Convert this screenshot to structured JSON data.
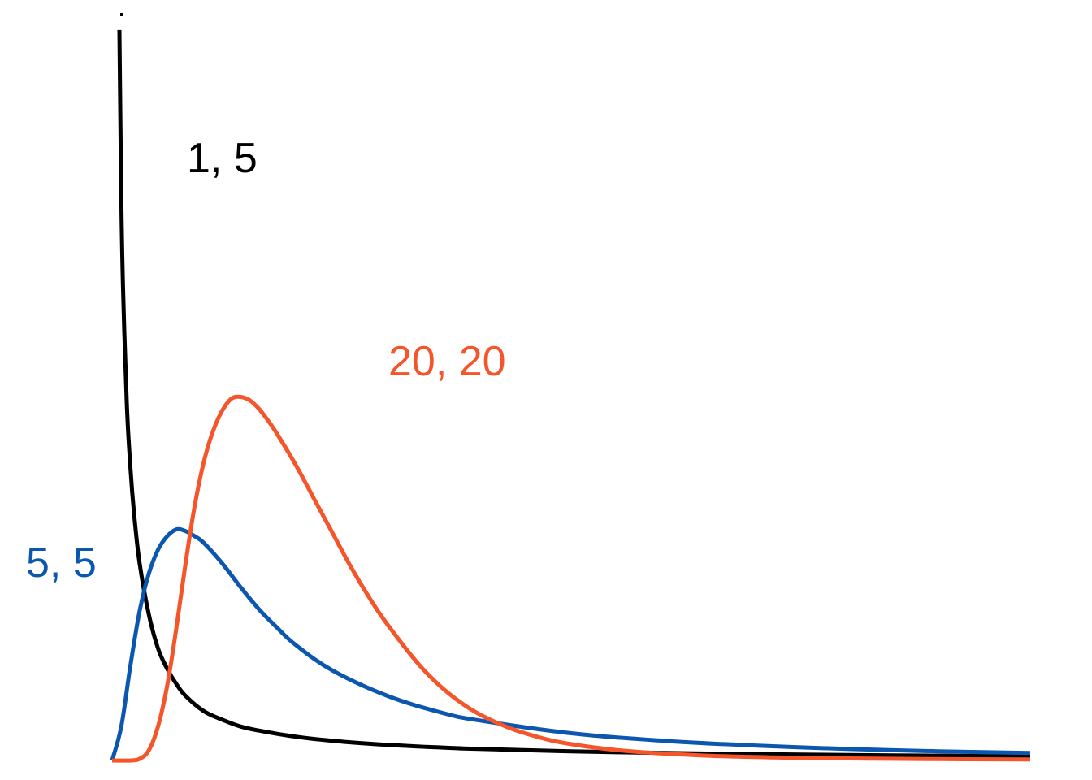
{
  "chart_data": {
    "type": "line",
    "title": "",
    "xlabel": "",
    "ylabel": "",
    "xlim": [
      0,
      5
    ],
    "ylim": [
      0,
      2.2
    ],
    "grid": false,
    "legend": "inline labels",
    "series": [
      {
        "name": "1, 5",
        "color": "#000000",
        "x": [
          0.04,
          0.05,
          0.06,
          0.08,
          0.1,
          0.12,
          0.15,
          0.2,
          0.25,
          0.3,
          0.35,
          0.4,
          0.5,
          0.6,
          0.7,
          0.8,
          1.0,
          1.2,
          1.5,
          1.8,
          2.0,
          2.5,
          3.0,
          3.5,
          4.0,
          4.5,
          5.0
        ],
        "values": [
          2.15,
          1.66,
          1.38,
          1.05,
          0.86,
          0.725,
          0.58,
          0.43,
          0.33,
          0.27,
          0.225,
          0.19,
          0.145,
          0.12,
          0.1,
          0.088,
          0.07,
          0.058,
          0.046,
          0.038,
          0.034,
          0.027,
          0.022,
          0.019,
          0.016,
          0.014,
          0.012
        ]
      },
      {
        "name": "5, 5",
        "color": "#0b57b0",
        "x": [
          0.0,
          0.05,
          0.1,
          0.15,
          0.2,
          0.25,
          0.3,
          0.35,
          0.4,
          0.45,
          0.5,
          0.6,
          0.7,
          0.8,
          0.9,
          1.0,
          1.2,
          1.5,
          1.8,
          2.0,
          2.5,
          3.0,
          3.5,
          4.0,
          4.5,
          5.0
        ],
        "values": [
          0.0,
          0.1,
          0.28,
          0.44,
          0.55,
          0.62,
          0.66,
          0.68,
          0.675,
          0.66,
          0.64,
          0.58,
          0.51,
          0.445,
          0.39,
          0.34,
          0.265,
          0.19,
          0.14,
          0.118,
          0.08,
          0.058,
          0.044,
          0.034,
          0.027,
          0.022
        ]
      },
      {
        "name": "20, 20",
        "color": "#f4552a",
        "x": [
          0.0,
          0.1,
          0.15,
          0.2,
          0.25,
          0.3,
          0.35,
          0.4,
          0.45,
          0.5,
          0.55,
          0.6,
          0.65,
          0.7,
          0.75,
          0.8,
          0.85,
          0.9,
          1.0,
          1.1,
          1.2,
          1.3,
          1.4,
          1.5,
          1.7,
          1.9,
          2.1,
          2.3,
          2.5,
          2.8,
          3.2,
          3.6,
          4.0,
          4.5,
          5.0
        ],
        "values": [
          0.0,
          0.0,
          0.005,
          0.03,
          0.1,
          0.22,
          0.39,
          0.58,
          0.75,
          0.88,
          0.97,
          1.03,
          1.065,
          1.07,
          1.06,
          1.035,
          1.0,
          0.96,
          0.87,
          0.77,
          0.67,
          0.57,
          0.48,
          0.4,
          0.265,
          0.17,
          0.11,
          0.072,
          0.048,
          0.028,
          0.015,
          0.009,
          0.006,
          0.004,
          0.003
        ]
      }
    ],
    "annotations": [
      {
        "text": "1, 5",
        "series": 0
      },
      {
        "text": "5, 5",
        "series": 1
      },
      {
        "text": "20, 20",
        "series": 2
      }
    ]
  }
}
